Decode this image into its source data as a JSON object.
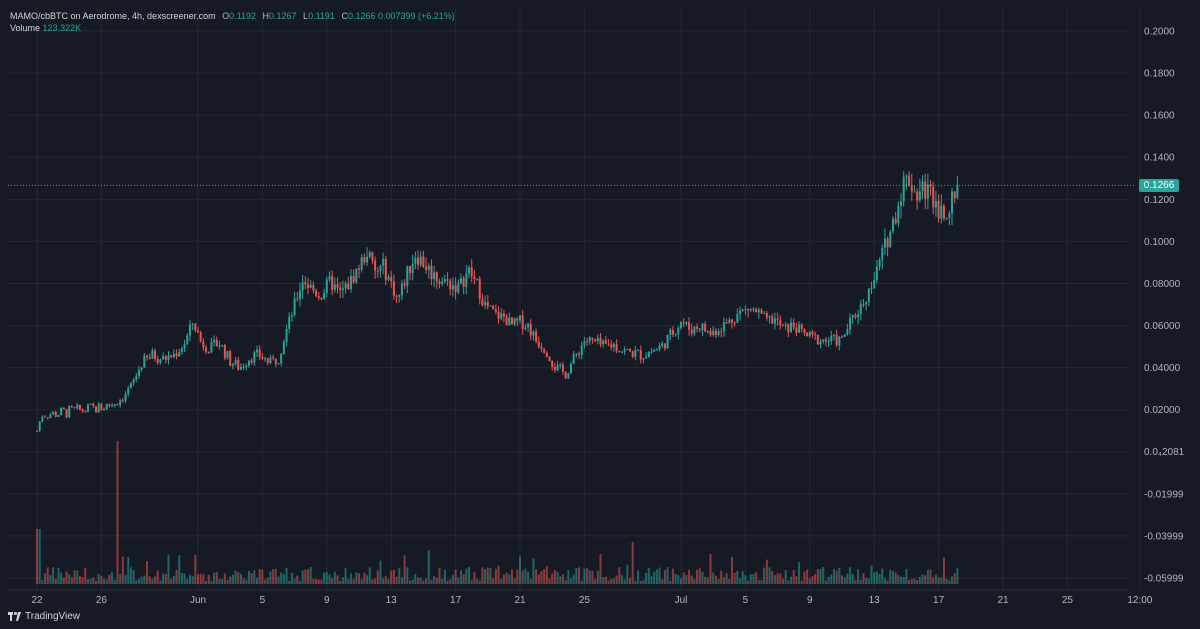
{
  "legend": {
    "symbol": "MAMO/cbBTC on Aerodrome, 4h, dexscreener.com",
    "o_label": "O",
    "o": "0.1192",
    "h_label": "H",
    "h": "0.1267",
    "l_label": "L",
    "l": "0.1191",
    "c_label": "C",
    "c": "0.1266",
    "change": "0.007399 (+6.21%)",
    "volume_label": "Volume",
    "volume": "123.322K"
  },
  "last_price": "0.1266",
  "footer": {
    "brand": "TradingView"
  },
  "colors": {
    "up": "#26a69a",
    "down": "#ef5350",
    "grid": "#242833",
    "bg": "#161a25",
    "text": "#b2b5be"
  },
  "chart_data": {
    "type": "candlestick",
    "interval": "4h",
    "y_ticks": [
      "0.2000",
      "0.1800",
      "0.1600",
      "0.1400",
      "0.1200",
      "0.1000",
      "0.08000",
      "0.06000",
      "0.04000",
      "0.02000",
      "0.0₄2081",
      "-0.01999",
      "-0.03999",
      "-0.05999"
    ],
    "y_tick_values": [
      0.2,
      0.18,
      0.16,
      0.14,
      0.12,
      0.1,
      0.08,
      0.06,
      0.04,
      0.02,
      2.081e-05,
      -0.01999,
      -0.03999,
      -0.05999
    ],
    "x_ticks": [
      "22",
      "26",
      "Jun",
      "5",
      "9",
      "13",
      "17",
      "21",
      "25",
      "Jul",
      "5",
      "9",
      "13",
      "17",
      "21",
      "25",
      "12:00"
    ],
    "x_tick_days": [
      0,
      4,
      10,
      14,
      18,
      22,
      26,
      30,
      34,
      40,
      44,
      48,
      52,
      56,
      60,
      64,
      68.5
    ],
    "ylim": [
      -0.065,
      0.207
    ],
    "price_path_day_close": [
      [
        0,
        0.01
      ],
      [
        0.3,
        0.018
      ],
      [
        1,
        0.018
      ],
      [
        2,
        0.019
      ],
      [
        3,
        0.02
      ],
      [
        4,
        0.021
      ],
      [
        5,
        0.024
      ],
      [
        5.8,
        0.03
      ],
      [
        6.5,
        0.042
      ],
      [
        7.2,
        0.046
      ],
      [
        7.8,
        0.044
      ],
      [
        8.5,
        0.046
      ],
      [
        9.2,
        0.052
      ],
      [
        9.7,
        0.062
      ],
      [
        10.2,
        0.052
      ],
      [
        10.8,
        0.049
      ],
      [
        11.3,
        0.052
      ],
      [
        12,
        0.043
      ],
      [
        12.6,
        0.04
      ],
      [
        13.2,
        0.045
      ],
      [
        13.8,
        0.046
      ],
      [
        14.5,
        0.042
      ],
      [
        15,
        0.045
      ],
      [
        15.5,
        0.058
      ],
      [
        16,
        0.07
      ],
      [
        16.5,
        0.082
      ],
      [
        17,
        0.078
      ],
      [
        17.6,
        0.074
      ],
      [
        18.2,
        0.081
      ],
      [
        18.8,
        0.075
      ],
      [
        19.4,
        0.08
      ],
      [
        20,
        0.088
      ],
      [
        20.5,
        0.095
      ],
      [
        21,
        0.085
      ],
      [
        21.5,
        0.088
      ],
      [
        22,
        0.08
      ],
      [
        22.4,
        0.072
      ],
      [
        23,
        0.085
      ],
      [
        23.5,
        0.094
      ],
      [
        24,
        0.09
      ],
      [
        24.5,
        0.085
      ],
      [
        25,
        0.082
      ],
      [
        25.6,
        0.08
      ],
      [
        26.2,
        0.078
      ],
      [
        26.8,
        0.086
      ],
      [
        27.3,
        0.08
      ],
      [
        27.8,
        0.07
      ],
      [
        28.5,
        0.065
      ],
      [
        29,
        0.064
      ],
      [
        29.5,
        0.06
      ],
      [
        30,
        0.062
      ],
      [
        30.5,
        0.06
      ],
      [
        31,
        0.053
      ],
      [
        31.6,
        0.049
      ],
      [
        32.2,
        0.04
      ],
      [
        32.8,
        0.037
      ],
      [
        33.5,
        0.046
      ],
      [
        34,
        0.053
      ],
      [
        34.6,
        0.052
      ],
      [
        35.2,
        0.05
      ],
      [
        35.8,
        0.051
      ],
      [
        36.4,
        0.048
      ],
      [
        37,
        0.047
      ],
      [
        37.6,
        0.046
      ],
      [
        38.2,
        0.048
      ],
      [
        38.8,
        0.05
      ],
      [
        39.4,
        0.056
      ],
      [
        40,
        0.062
      ],
      [
        40.6,
        0.058
      ],
      [
        41.2,
        0.06
      ],
      [
        41.8,
        0.056
      ],
      [
        42.4,
        0.059
      ],
      [
        43,
        0.062
      ],
      [
        43.6,
        0.066
      ],
      [
        44.2,
        0.068
      ],
      [
        44.8,
        0.066
      ],
      [
        45.3,
        0.062
      ],
      [
        45.8,
        0.063
      ],
      [
        46.4,
        0.058
      ],
      [
        47,
        0.06
      ],
      [
        47.6,
        0.056
      ],
      [
        48.2,
        0.054
      ],
      [
        48.8,
        0.053
      ],
      [
        49.4,
        0.053
      ],
      [
        50,
        0.053
      ],
      [
        50.4,
        0.06
      ],
      [
        50.9,
        0.066
      ],
      [
        51.4,
        0.072
      ],
      [
        52,
        0.082
      ],
      [
        52.5,
        0.094
      ],
      [
        53,
        0.105
      ],
      [
        53.4,
        0.115
      ],
      [
        53.8,
        0.128
      ],
      [
        54.2,
        0.13
      ],
      [
        54.6,
        0.122
      ],
      [
        55,
        0.125
      ],
      [
        55.4,
        0.124
      ],
      [
        55.8,
        0.12
      ],
      [
        56.1,
        0.114
      ],
      [
        56.5,
        0.116
      ],
      [
        56.9,
        0.119
      ],
      [
        57.2,
        0.1266
      ]
    ],
    "volume_scale": "relative"
  }
}
